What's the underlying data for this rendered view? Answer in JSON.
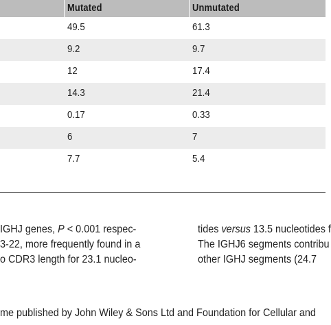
{
  "table": {
    "headers": [
      "Mutated",
      "Unmutated"
    ],
    "rows": [
      [
        "49.5",
        "61.3"
      ],
      [
        "9.2",
        "9.7"
      ],
      [
        "12",
        "17.4"
      ],
      [
        "14.3",
        "21.4"
      ],
      [
        "0.17",
        "0.33"
      ],
      [
        "6",
        "7"
      ],
      [
        "7.7",
        "5.4"
      ]
    ]
  },
  "body_text": {
    "left_col": [
      "IGHJ genes, P < 0.001 respec-",
      "3-22, more frequently found in a",
      "o CDR3 length for 23.1 nucleo-"
    ],
    "right_col": [
      "tides versus 13.5 nucleotides f",
      "The IGHJ6 segments contribu",
      "other IGHJ segments (24.7"
    ]
  },
  "footer": "me published by John Wiley & Sons Ltd and Foundation for Cellular and"
}
